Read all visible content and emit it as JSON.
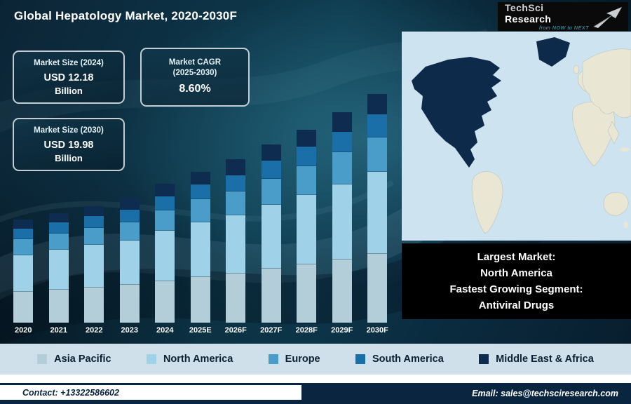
{
  "header": {
    "title": "Global Hepatology Market, 2020-2030F"
  },
  "logo": {
    "name_primary": "TechSci",
    "name_secondary": "Research",
    "tagline": "from NOW to NEXT"
  },
  "stat_boxes": [
    {
      "label": "Market Size (2024)",
      "value": "USD 12.18",
      "unit": "Billion"
    },
    {
      "label": "Market CAGR",
      "label2": "(2025-2030)",
      "value": "8.60%"
    },
    {
      "label": "Market Size (2030)",
      "value": "USD 19.98",
      "unit": "Billion"
    }
  ],
  "chart_data": {
    "type": "bar",
    "stacked": true,
    "title": "Global Hepatology Market, 2020-2030F",
    "categories": [
      "2020",
      "2021",
      "2022",
      "2023",
      "2024",
      "2025E",
      "2026F",
      "2027F",
      "2028F",
      "2029F",
      "2030F"
    ],
    "series": [
      {
        "name": "Asia Pacific",
        "color": "#b3cdd9",
        "values": [
          2.7,
          2.9,
          3.1,
          3.3,
          3.65,
          4.0,
          4.3,
          4.7,
          5.1,
          5.5,
          6.0
        ]
      },
      {
        "name": "North America",
        "color": "#9fd1e8",
        "values": [
          3.2,
          3.5,
          3.7,
          3.9,
          4.4,
          4.8,
          5.1,
          5.6,
          6.1,
          6.6,
          7.2
        ]
      },
      {
        "name": "Europe",
        "color": "#4a9dc9",
        "values": [
          1.4,
          1.4,
          1.5,
          1.6,
          1.8,
          2.0,
          2.1,
          2.3,
          2.5,
          2.8,
          3.0
        ]
      },
      {
        "name": "South America",
        "color": "#1b6fa9",
        "values": [
          0.9,
          1.0,
          1.0,
          1.1,
          1.2,
          1.3,
          1.4,
          1.6,
          1.7,
          1.8,
          2.0
        ]
      },
      {
        "name": "Middle East & Africa",
        "color": "#0d2c50",
        "values": [
          0.8,
          0.8,
          0.9,
          1.0,
          1.13,
          1.1,
          1.4,
          1.4,
          1.5,
          1.7,
          1.78
        ]
      }
    ],
    "ylim": [
      0,
      21
    ],
    "grid": false,
    "legend_position": "bottom"
  },
  "map_callout": {
    "lines": [
      "Largest Market:",
      "North America",
      "Fastest Growing Segment:",
      "Antiviral Drugs"
    ]
  },
  "footer": {
    "contact": "Contact: +13322586602",
    "email": "Email: sales@techsciresearch.com"
  },
  "colors": {
    "backdrop_dark": "#0b2435",
    "legend_bg": "#cfe0eb",
    "callout_bg": "#000000",
    "footer_navy": "#0a2540",
    "map_ocean": "#cde3f0",
    "map_land": "#eae6d4",
    "map_highlight": "#0e2a4a"
  }
}
